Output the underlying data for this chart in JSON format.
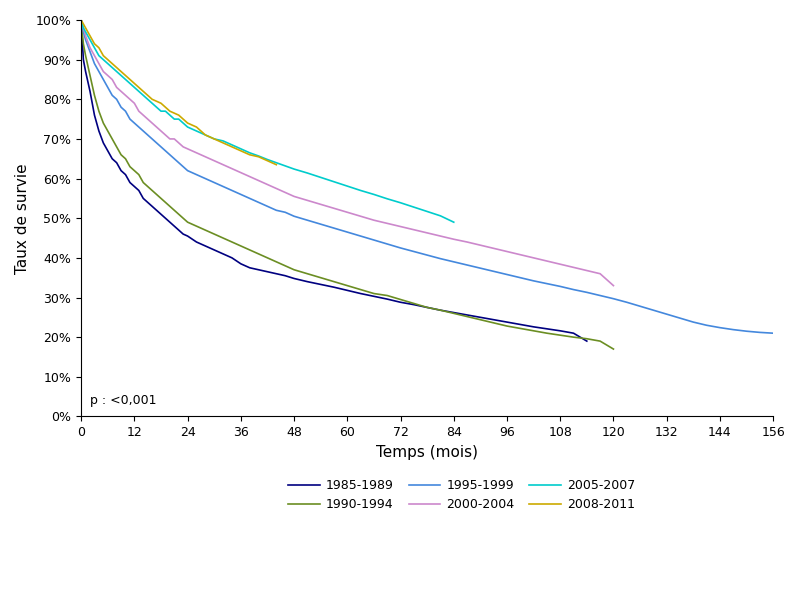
{
  "xlabel": "Temps (mois)",
  "ylabel": "Taux de survie",
  "pvalue": "p : <0,001",
  "xlim": [
    0,
    156
  ],
  "ylim": [
    0,
    1.0
  ],
  "xticks": [
    0,
    12,
    24,
    36,
    48,
    60,
    72,
    84,
    96,
    108,
    120,
    132,
    144,
    156
  ],
  "yticks": [
    0.0,
    0.1,
    0.2,
    0.3,
    0.4,
    0.5,
    0.6,
    0.7,
    0.8,
    0.9,
    1.0
  ],
  "series": [
    {
      "label": "1985-1989",
      "color": "#000080",
      "points": [
        [
          0,
          1.0
        ],
        [
          0.5,
          0.9
        ],
        [
          1,
          0.87
        ],
        [
          2,
          0.82
        ],
        [
          3,
          0.76
        ],
        [
          4,
          0.72
        ],
        [
          5,
          0.69
        ],
        [
          6,
          0.67
        ],
        [
          7,
          0.65
        ],
        [
          8,
          0.64
        ],
        [
          9,
          0.62
        ],
        [
          10,
          0.61
        ],
        [
          11,
          0.59
        ],
        [
          12,
          0.58
        ],
        [
          13,
          0.57
        ],
        [
          14,
          0.55
        ],
        [
          15,
          0.54
        ],
        [
          16,
          0.53
        ],
        [
          17,
          0.52
        ],
        [
          18,
          0.51
        ],
        [
          19,
          0.5
        ],
        [
          20,
          0.49
        ],
        [
          21,
          0.48
        ],
        [
          22,
          0.47
        ],
        [
          23,
          0.46
        ],
        [
          24,
          0.455
        ],
        [
          26,
          0.44
        ],
        [
          28,
          0.43
        ],
        [
          30,
          0.42
        ],
        [
          32,
          0.41
        ],
        [
          34,
          0.4
        ],
        [
          36,
          0.385
        ],
        [
          38,
          0.375
        ],
        [
          40,
          0.37
        ],
        [
          42,
          0.365
        ],
        [
          44,
          0.36
        ],
        [
          46,
          0.355
        ],
        [
          48,
          0.348
        ],
        [
          51,
          0.34
        ],
        [
          54,
          0.333
        ],
        [
          57,
          0.326
        ],
        [
          60,
          0.318
        ],
        [
          63,
          0.31
        ],
        [
          66,
          0.303
        ],
        [
          69,
          0.296
        ],
        [
          72,
          0.288
        ],
        [
          75,
          0.282
        ],
        [
          78,
          0.275
        ],
        [
          81,
          0.268
        ],
        [
          84,
          0.262
        ],
        [
          87,
          0.256
        ],
        [
          90,
          0.25
        ],
        [
          93,
          0.244
        ],
        [
          96,
          0.238
        ],
        [
          99,
          0.232
        ],
        [
          102,
          0.226
        ],
        [
          105,
          0.221
        ],
        [
          108,
          0.216
        ],
        [
          111,
          0.21
        ],
        [
          114,
          0.19
        ]
      ]
    },
    {
      "label": "1990-1994",
      "color": "#6b8e23",
      "points": [
        [
          0,
          1.0
        ],
        [
          0.5,
          0.94
        ],
        [
          1,
          0.91
        ],
        [
          2,
          0.86
        ],
        [
          3,
          0.81
        ],
        [
          4,
          0.77
        ],
        [
          5,
          0.74
        ],
        [
          6,
          0.72
        ],
        [
          7,
          0.7
        ],
        [
          8,
          0.68
        ],
        [
          9,
          0.66
        ],
        [
          10,
          0.65
        ],
        [
          11,
          0.63
        ],
        [
          12,
          0.62
        ],
        [
          13,
          0.61
        ],
        [
          14,
          0.59
        ],
        [
          15,
          0.58
        ],
        [
          16,
          0.57
        ],
        [
          17,
          0.56
        ],
        [
          18,
          0.55
        ],
        [
          19,
          0.54
        ],
        [
          20,
          0.53
        ],
        [
          21,
          0.52
        ],
        [
          22,
          0.51
        ],
        [
          23,
          0.5
        ],
        [
          24,
          0.49
        ],
        [
          26,
          0.48
        ],
        [
          28,
          0.47
        ],
        [
          30,
          0.46
        ],
        [
          32,
          0.45
        ],
        [
          34,
          0.44
        ],
        [
          36,
          0.43
        ],
        [
          38,
          0.42
        ],
        [
          40,
          0.41
        ],
        [
          42,
          0.4
        ],
        [
          44,
          0.39
        ],
        [
          46,
          0.38
        ],
        [
          48,
          0.37
        ],
        [
          51,
          0.36
        ],
        [
          54,
          0.35
        ],
        [
          57,
          0.34
        ],
        [
          60,
          0.33
        ],
        [
          63,
          0.32
        ],
        [
          66,
          0.31
        ],
        [
          69,
          0.305
        ],
        [
          72,
          0.295
        ],
        [
          75,
          0.285
        ],
        [
          78,
          0.275
        ],
        [
          81,
          0.268
        ],
        [
          84,
          0.26
        ],
        [
          87,
          0.252
        ],
        [
          90,
          0.244
        ],
        [
          93,
          0.236
        ],
        [
          96,
          0.228
        ],
        [
          99,
          0.222
        ],
        [
          102,
          0.216
        ],
        [
          105,
          0.21
        ],
        [
          108,
          0.205
        ],
        [
          111,
          0.2
        ],
        [
          114,
          0.196
        ],
        [
          117,
          0.19
        ],
        [
          120,
          0.17
        ]
      ]
    },
    {
      "label": "1995-1999",
      "color": "#4488dd",
      "points": [
        [
          0,
          1.0
        ],
        [
          0.5,
          0.97
        ],
        [
          1,
          0.95
        ],
        [
          2,
          0.92
        ],
        [
          3,
          0.89
        ],
        [
          4,
          0.87
        ],
        [
          5,
          0.85
        ],
        [
          6,
          0.83
        ],
        [
          7,
          0.81
        ],
        [
          8,
          0.8
        ],
        [
          9,
          0.78
        ],
        [
          10,
          0.77
        ],
        [
          11,
          0.75
        ],
        [
          12,
          0.74
        ],
        [
          13,
          0.73
        ],
        [
          14,
          0.72
        ],
        [
          15,
          0.71
        ],
        [
          16,
          0.7
        ],
        [
          17,
          0.69
        ],
        [
          18,
          0.68
        ],
        [
          19,
          0.67
        ],
        [
          20,
          0.66
        ],
        [
          21,
          0.65
        ],
        [
          22,
          0.64
        ],
        [
          23,
          0.63
        ],
        [
          24,
          0.62
        ],
        [
          26,
          0.61
        ],
        [
          28,
          0.6
        ],
        [
          30,
          0.59
        ],
        [
          32,
          0.58
        ],
        [
          34,
          0.57
        ],
        [
          36,
          0.56
        ],
        [
          38,
          0.55
        ],
        [
          40,
          0.54
        ],
        [
          42,
          0.53
        ],
        [
          44,
          0.52
        ],
        [
          46,
          0.515
        ],
        [
          48,
          0.505
        ],
        [
          51,
          0.495
        ],
        [
          54,
          0.485
        ],
        [
          57,
          0.475
        ],
        [
          60,
          0.465
        ],
        [
          63,
          0.455
        ],
        [
          66,
          0.445
        ],
        [
          69,
          0.435
        ],
        [
          72,
          0.425
        ],
        [
          75,
          0.416
        ],
        [
          78,
          0.407
        ],
        [
          81,
          0.398
        ],
        [
          84,
          0.39
        ],
        [
          87,
          0.382
        ],
        [
          90,
          0.374
        ],
        [
          93,
          0.366
        ],
        [
          96,
          0.358
        ],
        [
          99,
          0.35
        ],
        [
          102,
          0.342
        ],
        [
          105,
          0.335
        ],
        [
          108,
          0.328
        ],
        [
          111,
          0.32
        ],
        [
          114,
          0.313
        ],
        [
          117,
          0.305
        ],
        [
          120,
          0.297
        ],
        [
          123,
          0.288
        ],
        [
          126,
          0.278
        ],
        [
          129,
          0.268
        ],
        [
          132,
          0.258
        ],
        [
          135,
          0.248
        ],
        [
          138,
          0.238
        ],
        [
          141,
          0.23
        ],
        [
          144,
          0.224
        ],
        [
          147,
          0.219
        ],
        [
          150,
          0.215
        ],
        [
          153,
          0.212
        ],
        [
          156,
          0.21
        ]
      ]
    },
    {
      "label": "2000-2004",
      "color": "#cc88cc",
      "points": [
        [
          0,
          1.0
        ],
        [
          0.5,
          0.98
        ],
        [
          1,
          0.96
        ],
        [
          2,
          0.93
        ],
        [
          3,
          0.91
        ],
        [
          4,
          0.89
        ],
        [
          5,
          0.87
        ],
        [
          6,
          0.86
        ],
        [
          7,
          0.85
        ],
        [
          8,
          0.83
        ],
        [
          9,
          0.82
        ],
        [
          10,
          0.81
        ],
        [
          11,
          0.8
        ],
        [
          12,
          0.79
        ],
        [
          13,
          0.77
        ],
        [
          14,
          0.76
        ],
        [
          15,
          0.75
        ],
        [
          16,
          0.74
        ],
        [
          17,
          0.73
        ],
        [
          18,
          0.72
        ],
        [
          19,
          0.71
        ],
        [
          20,
          0.7
        ],
        [
          21,
          0.7
        ],
        [
          22,
          0.69
        ],
        [
          23,
          0.68
        ],
        [
          24,
          0.675
        ],
        [
          26,
          0.665
        ],
        [
          28,
          0.655
        ],
        [
          30,
          0.645
        ],
        [
          32,
          0.635
        ],
        [
          34,
          0.625
        ],
        [
          36,
          0.615
        ],
        [
          38,
          0.605
        ],
        [
          40,
          0.595
        ],
        [
          42,
          0.585
        ],
        [
          44,
          0.575
        ],
        [
          46,
          0.565
        ],
        [
          48,
          0.555
        ],
        [
          51,
          0.545
        ],
        [
          54,
          0.535
        ],
        [
          57,
          0.525
        ],
        [
          60,
          0.515
        ],
        [
          63,
          0.505
        ],
        [
          66,
          0.495
        ],
        [
          69,
          0.487
        ],
        [
          72,
          0.479
        ],
        [
          75,
          0.471
        ],
        [
          78,
          0.463
        ],
        [
          81,
          0.455
        ],
        [
          84,
          0.447
        ],
        [
          87,
          0.44
        ],
        [
          90,
          0.432
        ],
        [
          93,
          0.424
        ],
        [
          96,
          0.416
        ],
        [
          99,
          0.408
        ],
        [
          102,
          0.4
        ],
        [
          105,
          0.392
        ],
        [
          108,
          0.384
        ],
        [
          111,
          0.376
        ],
        [
          114,
          0.368
        ],
        [
          117,
          0.36
        ],
        [
          120,
          0.33
        ]
      ]
    },
    {
      "label": "2005-2007",
      "color": "#00cccc",
      "points": [
        [
          0,
          1.0
        ],
        [
          0.5,
          0.98
        ],
        [
          1,
          0.97
        ],
        [
          2,
          0.95
        ],
        [
          3,
          0.93
        ],
        [
          4,
          0.91
        ],
        [
          5,
          0.9
        ],
        [
          6,
          0.89
        ],
        [
          7,
          0.88
        ],
        [
          8,
          0.87
        ],
        [
          9,
          0.86
        ],
        [
          10,
          0.85
        ],
        [
          11,
          0.84
        ],
        [
          12,
          0.83
        ],
        [
          13,
          0.82
        ],
        [
          14,
          0.81
        ],
        [
          15,
          0.8
        ],
        [
          16,
          0.79
        ],
        [
          17,
          0.78
        ],
        [
          18,
          0.77
        ],
        [
          19,
          0.77
        ],
        [
          20,
          0.76
        ],
        [
          21,
          0.75
        ],
        [
          22,
          0.75
        ],
        [
          23,
          0.74
        ],
        [
          24,
          0.73
        ],
        [
          26,
          0.72
        ],
        [
          28,
          0.71
        ],
        [
          30,
          0.7
        ],
        [
          32,
          0.695
        ],
        [
          34,
          0.685
        ],
        [
          36,
          0.675
        ],
        [
          38,
          0.665
        ],
        [
          40,
          0.657
        ],
        [
          42,
          0.648
        ],
        [
          44,
          0.64
        ],
        [
          46,
          0.632
        ],
        [
          48,
          0.624
        ],
        [
          51,
          0.614
        ],
        [
          54,
          0.603
        ],
        [
          57,
          0.592
        ],
        [
          60,
          0.581
        ],
        [
          63,
          0.57
        ],
        [
          66,
          0.56
        ],
        [
          69,
          0.549
        ],
        [
          72,
          0.539
        ],
        [
          75,
          0.528
        ],
        [
          78,
          0.517
        ],
        [
          81,
          0.506
        ],
        [
          84,
          0.49
        ]
      ]
    },
    {
      "label": "2008-2011",
      "color": "#ccaa00",
      "points": [
        [
          0,
          1.0
        ],
        [
          0.5,
          0.99
        ],
        [
          1,
          0.98
        ],
        [
          2,
          0.96
        ],
        [
          3,
          0.94
        ],
        [
          4,
          0.93
        ],
        [
          5,
          0.91
        ],
        [
          6,
          0.9
        ],
        [
          7,
          0.89
        ],
        [
          8,
          0.88
        ],
        [
          9,
          0.87
        ],
        [
          10,
          0.86
        ],
        [
          11,
          0.85
        ],
        [
          12,
          0.84
        ],
        [
          14,
          0.82
        ],
        [
          16,
          0.8
        ],
        [
          18,
          0.79
        ],
        [
          20,
          0.77
        ],
        [
          22,
          0.76
        ],
        [
          24,
          0.74
        ],
        [
          26,
          0.73
        ],
        [
          28,
          0.71
        ],
        [
          30,
          0.7
        ],
        [
          32,
          0.69
        ],
        [
          34,
          0.68
        ],
        [
          36,
          0.67
        ],
        [
          38,
          0.66
        ],
        [
          40,
          0.655
        ],
        [
          42,
          0.645
        ],
        [
          44,
          0.635
        ]
      ]
    }
  ],
  "legend_order": [
    "1985-1989",
    "1990-1994",
    "1995-1999",
    "2000-2004",
    "2005-2007",
    "2008-2011"
  ],
  "background_color": "#ffffff"
}
